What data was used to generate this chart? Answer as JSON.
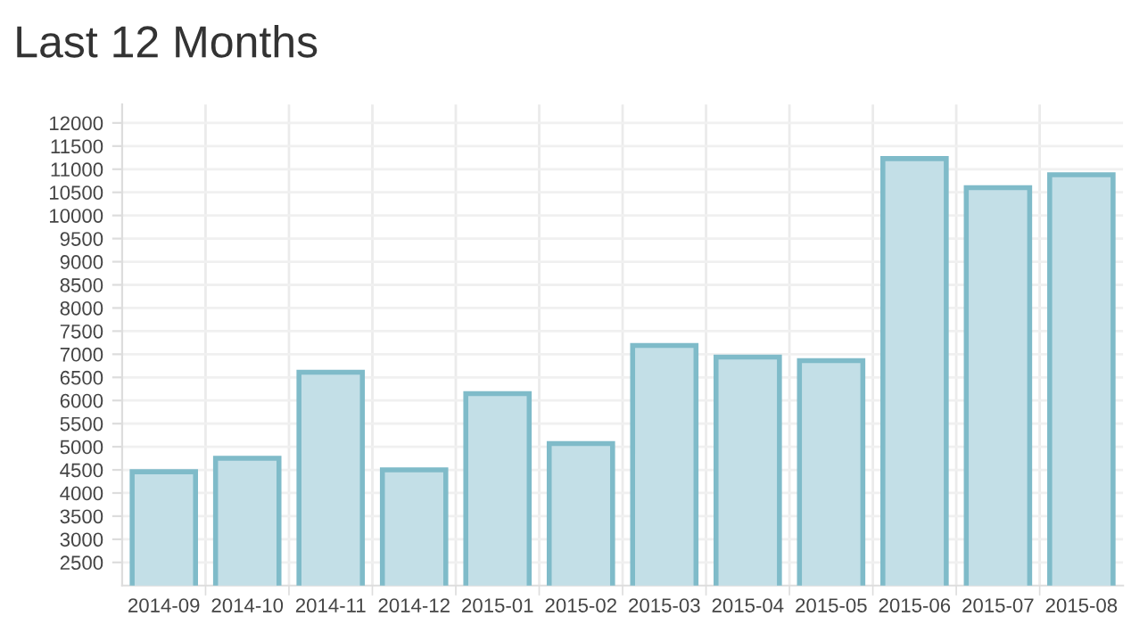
{
  "chart_data": {
    "type": "bar",
    "title": "Last 12 Months",
    "categories": [
      "2014-09",
      "2014-10",
      "2014-11",
      "2014-12",
      "2015-01",
      "2015-02",
      "2015-03",
      "2015-04",
      "2015-05",
      "2015-06",
      "2015-07",
      "2015-08"
    ],
    "values": [
      4460,
      4750,
      6610,
      4500,
      6150,
      5070,
      7190,
      6940,
      6860,
      11230,
      10600,
      10880
    ],
    "color": "#c3dfe7",
    "ylim": [
      2000,
      12400
    ],
    "yticks": [
      2500,
      3000,
      3500,
      4000,
      4500,
      5000,
      5500,
      6000,
      6500,
      7000,
      7500,
      8000,
      8500,
      9000,
      9500,
      10000,
      10500,
      11000,
      11500,
      12000
    ],
    "grid": true
  }
}
